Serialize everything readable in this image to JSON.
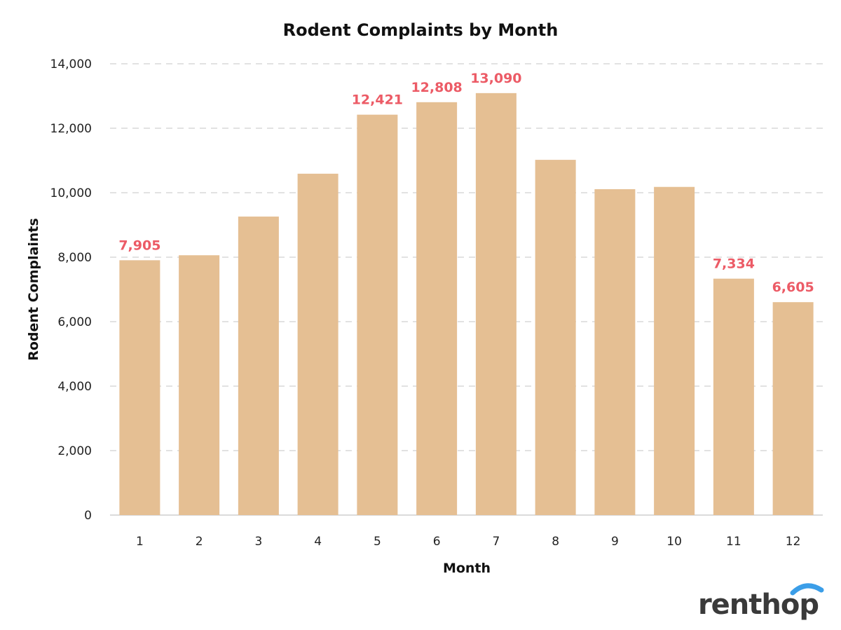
{
  "chart_data": {
    "type": "bar",
    "title": "Rodent Complaints by Month",
    "xlabel": "Month",
    "ylabel": "Rodent Complaints",
    "categories": [
      "1",
      "2",
      "3",
      "4",
      "5",
      "6",
      "7",
      "8",
      "9",
      "10",
      "11",
      "12"
    ],
    "values": [
      7905,
      8060,
      9260,
      10590,
      12421,
      12808,
      13090,
      11020,
      10110,
      10180,
      7334,
      6605
    ],
    "labeled_values": [
      "7,905",
      null,
      null,
      null,
      "12,421",
      "12,808",
      "13,090",
      null,
      null,
      null,
      "7,334",
      "6,605"
    ],
    "ylim": [
      0,
      14000
    ],
    "yticks": [
      0,
      2000,
      4000,
      6000,
      8000,
      10000,
      12000,
      14000
    ],
    "ytick_labels": [
      "0",
      "2,000",
      "4,000",
      "6,000",
      "8,000",
      "10,000",
      "12,000",
      "14,000"
    ],
    "grid": true,
    "legend": "none"
  },
  "colors": {
    "bar": "#e5bf93",
    "data_label": "#ec5b66",
    "brand_text": "#3a3a3a",
    "brand_arc": "#3b9ee8"
  },
  "brand": {
    "logo_text": "renthop"
  }
}
